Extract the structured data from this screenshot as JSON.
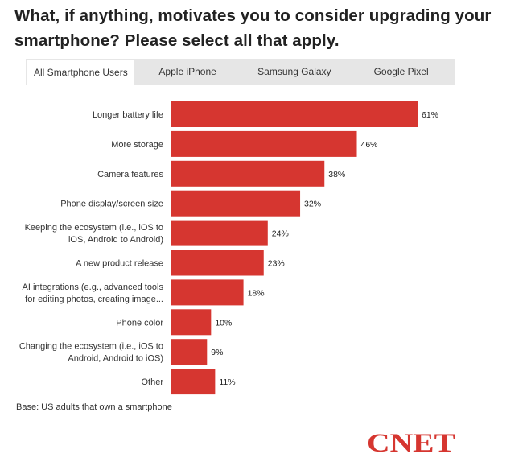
{
  "title": "What, if anything, motivates you to consider upgrading your smartphone? Please select all that apply.",
  "tabs": [
    {
      "label": "All Smartphone Users",
      "active": true
    },
    {
      "label": "Apple iPhone",
      "active": false
    },
    {
      "label": "Samsung Galaxy",
      "active": false
    },
    {
      "label": "Google Pixel",
      "active": false
    }
  ],
  "chart_data": {
    "type": "bar",
    "orientation": "horizontal",
    "categories": [
      [
        "Longer battery life"
      ],
      [
        "More storage"
      ],
      [
        "Camera features"
      ],
      [
        "Phone display/screen size"
      ],
      [
        "Keeping the ecosystem (i.e., iOS to",
        "iOS, Android to Android)"
      ],
      [
        "A new product release"
      ],
      [
        "AI integrations (e.g., advanced tools",
        "for editing photos, creating image..."
      ],
      [
        "Phone color"
      ],
      [
        "Changing the ecosystem (i.e., iOS to",
        "Android, Android to iOS)"
      ],
      [
        "Other"
      ]
    ],
    "values": [
      61,
      46,
      38,
      32,
      24,
      23,
      18,
      10,
      9,
      11
    ],
    "value_labels": [
      "61%",
      "46%",
      "38%",
      "32%",
      "24%",
      "23%",
      "18%",
      "10%",
      "9%",
      "11%"
    ],
    "unit": "%",
    "bar_color": "#d63630",
    "xlim": [
      0,
      61
    ],
    "grid": false,
    "legend": "none"
  },
  "base_note": "Base: US adults that own a smartphone",
  "logo": {
    "text": "CNET",
    "color": "#d63630"
  }
}
